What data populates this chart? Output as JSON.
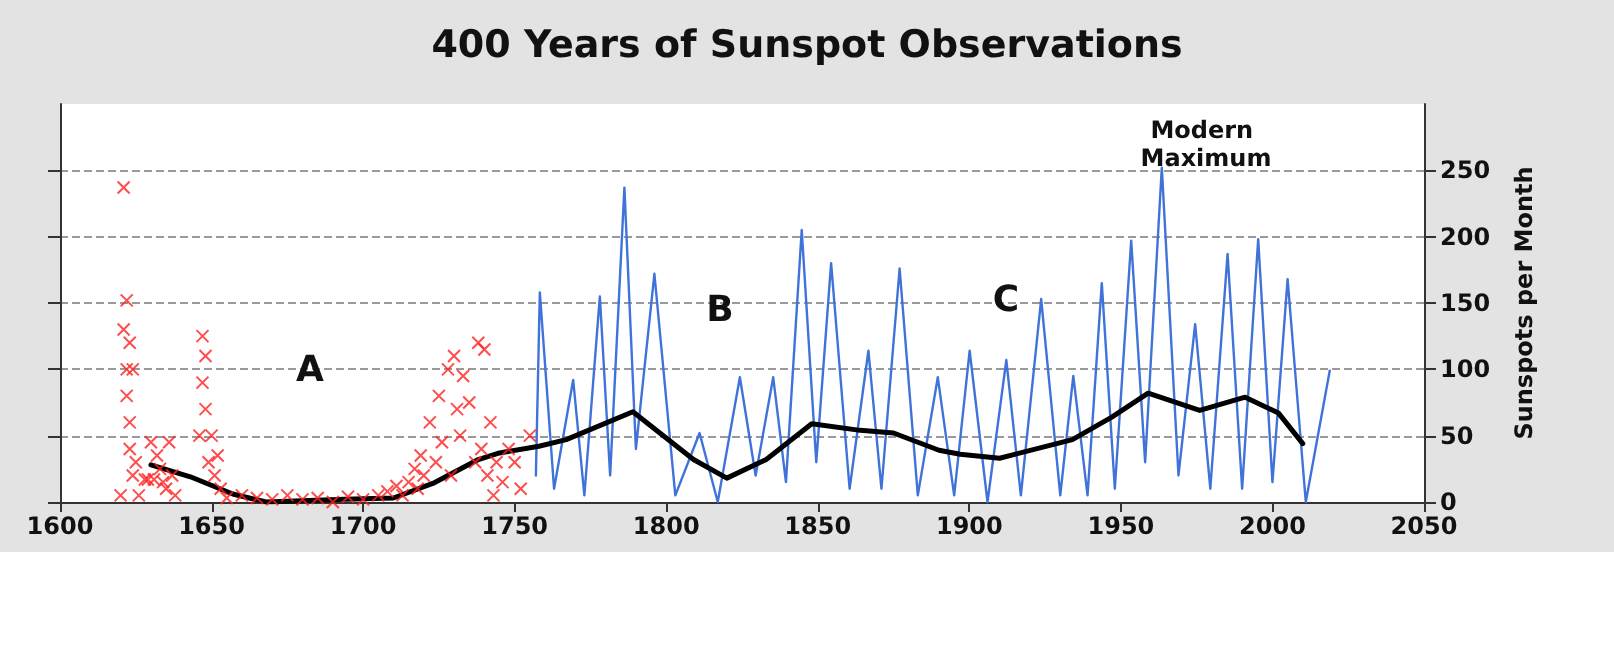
{
  "chart_data": {
    "type": "line",
    "title": "400 Years of Sunspot Observations",
    "ylabel": "Sunspots per Month",
    "xlim": [
      1600,
      2050
    ],
    "xticks": [
      1600,
      1650,
      1700,
      1750,
      1800,
      1850,
      1900,
      1950,
      2000,
      2050
    ],
    "ylim": [
      0,
      300
    ],
    "yticks": [
      0,
      50,
      100,
      150,
      200,
      250
    ],
    "grid": "y",
    "annotations": [
      "A",
      "B",
      "C",
      "Modern Maximum"
    ],
    "series": [
      {
        "type": "scatter",
        "marker": "cross",
        "color": "#ff2020",
        "x": [
          1620,
          1621,
          1621,
          1622,
          1622,
          1622,
          1623,
          1623,
          1623,
          1624,
          1624,
          1625,
          1626,
          1628,
          1629,
          1630,
          1631,
          1632,
          1633,
          1634,
          1635,
          1636,
          1637,
          1638,
          1646,
          1647,
          1647,
          1648,
          1648,
          1649,
          1650,
          1651,
          1652,
          1653,
          1655,
          1660,
          1665,
          1670,
          1675,
          1680,
          1685,
          1690,
          1695,
          1700,
          1705,
          1708,
          1711,
          1713,
          1715,
          1717,
          1718,
          1719,
          1720,
          1722,
          1724,
          1725,
          1726,
          1728,
          1729,
          1730,
          1731,
          1732,
          1733,
          1735,
          1737,
          1738,
          1739,
          1740,
          1741,
          1742,
          1743,
          1744,
          1746,
          1748,
          1750,
          1752,
          1755
        ],
        "values": [
          5,
          237,
          130,
          152,
          100,
          80,
          120,
          60,
          40,
          100,
          20,
          30,
          5,
          17,
          17,
          45,
          17,
          35,
          25,
          15,
          10,
          45,
          20,
          5,
          50,
          125,
          90,
          110,
          70,
          30,
          50,
          20,
          35,
          10,
          3,
          5,
          3,
          2,
          5,
          2,
          3,
          0,
          4,
          2,
          5,
          8,
          12,
          5,
          15,
          25,
          10,
          35,
          20,
          60,
          30,
          80,
          45,
          100,
          20,
          110,
          70,
          50,
          95,
          75,
          30,
          120,
          40,
          115,
          20,
          60,
          5,
          30,
          15,
          40,
          30,
          10,
          50
        ]
      },
      {
        "marker": "none",
        "color": "#3f73d9",
        "x": [
          1757,
          1758.3,
          1763,
          1769.3,
          1773,
          1778.1,
          1781.5,
          1786.2,
          1790,
          1796.1,
          1803,
          1811,
          1817,
          1824.3,
          1829.5,
          1835.3,
          1839.5,
          1844.7,
          1849.5,
          1854.4,
          1860.5,
          1866.7,
          1871,
          1877,
          1883,
          1889.6,
          1895,
          1900.1,
          1906,
          1912.2,
          1917,
          1923.7,
          1930,
          1934.3,
          1939,
          1943.7,
          1948,
          1953.4,
          1958,
          1963.5,
          1969,
          1974.5,
          1979.5,
          1985.2,
          1990,
          1995.3,
          2000,
          2005,
          2011,
          2018.9
        ],
        "values": [
          20,
          158,
          10,
          92,
          5,
          155,
          20,
          237,
          40,
          172,
          5,
          52,
          0,
          94,
          20,
          94,
          15,
          205,
          30,
          180,
          10,
          114,
          10,
          176,
          5,
          94,
          5,
          114,
          0,
          107,
          5,
          153,
          5,
          95,
          5,
          165,
          10,
          197,
          30,
          252,
          20,
          134,
          10,
          187,
          10,
          198,
          15,
          168,
          0,
          99
        ]
      },
      {
        "marker": "none",
        "color": "#000000",
        "x": [
          1630,
          1643,
          1657,
          1668,
          1694,
          1710,
          1723,
          1738,
          1745,
          1758,
          1767,
          1789,
          1809,
          1820,
          1833,
          1848,
          1864,
          1875,
          1890,
          1897,
          1910,
          1934,
          1947,
          1959,
          1976,
          1991,
          2002,
          2010
        ],
        "values": [
          28,
          19,
          6,
          0,
          2,
          3,
          14,
          32,
          37,
          42,
          47,
          68,
          32,
          18,
          32,
          59,
          54,
          52,
          39,
          36,
          33,
          47,
          64,
          82,
          69,
          79,
          67,
          44
        ]
      }
    ]
  }
}
